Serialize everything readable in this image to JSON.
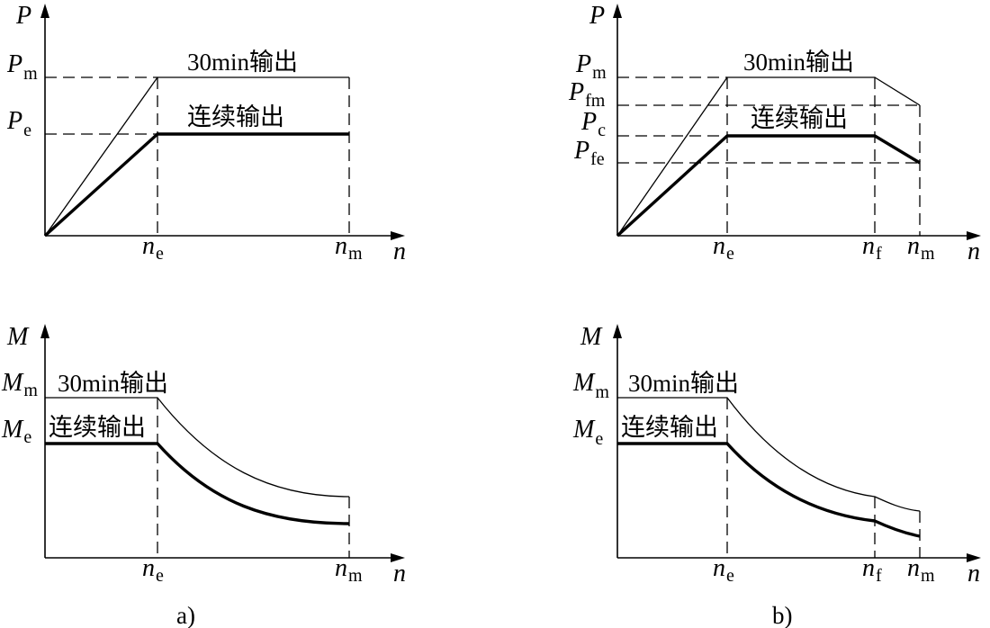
{
  "panels": {
    "a": {
      "caption": "a)",
      "power": {
        "y_axis": {
          "symbol": "P",
          "sub": ""
        },
        "x_axis": {
          "symbol": "n",
          "sub": ""
        },
        "y_ticks": [
          {
            "symbol": "P",
            "sub": "m"
          },
          {
            "symbol": "P",
            "sub": "e"
          }
        ],
        "x_ticks": [
          {
            "symbol": "n",
            "sub": "e"
          },
          {
            "symbol": "n",
            "sub": "m"
          }
        ],
        "label_30min": "30min输出",
        "label_continuous": "连续输出"
      },
      "torque": {
        "y_axis": {
          "symbol": "M",
          "sub": ""
        },
        "x_axis": {
          "symbol": "n",
          "sub": ""
        },
        "y_ticks": [
          {
            "symbol": "M",
            "sub": "m"
          },
          {
            "symbol": "M",
            "sub": "e"
          }
        ],
        "x_ticks": [
          {
            "symbol": "n",
            "sub": "e"
          },
          {
            "symbol": "n",
            "sub": "m"
          }
        ],
        "label_30min": "30min输出",
        "label_continuous": "连续输出"
      }
    },
    "b": {
      "caption": "b)",
      "power": {
        "y_axis": {
          "symbol": "P",
          "sub": ""
        },
        "x_axis": {
          "symbol": "n",
          "sub": ""
        },
        "y_ticks": [
          {
            "symbol": "P",
            "sub": "m"
          },
          {
            "symbol": "P",
            "sub": "fm"
          },
          {
            "symbol": "P",
            "sub": "c"
          },
          {
            "symbol": "P",
            "sub": "fe"
          }
        ],
        "x_ticks": [
          {
            "symbol": "n",
            "sub": "e"
          },
          {
            "symbol": "n",
            "sub": "f"
          },
          {
            "symbol": "n",
            "sub": "m"
          }
        ],
        "label_30min": "30min输出",
        "label_continuous": "连续输出"
      },
      "torque": {
        "y_axis": {
          "symbol": "M",
          "sub": ""
        },
        "x_axis": {
          "symbol": "n",
          "sub": ""
        },
        "y_ticks": [
          {
            "symbol": "M",
            "sub": "m"
          },
          {
            "symbol": "M",
            "sub": "e"
          }
        ],
        "x_ticks": [
          {
            "symbol": "n",
            "sub": "e"
          },
          {
            "symbol": "n",
            "sub": "f"
          },
          {
            "symbol": "n",
            "sub": "m"
          }
        ],
        "label_30min": "30min输出",
        "label_continuous": "连续输出"
      }
    }
  }
}
